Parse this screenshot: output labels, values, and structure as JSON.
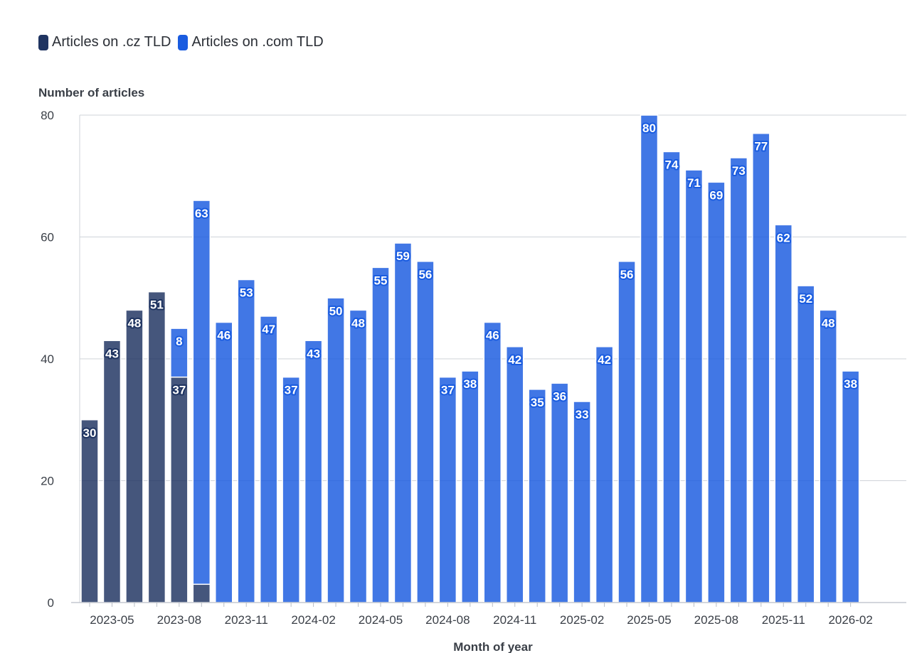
{
  "chart_data": {
    "type": "bar",
    "stacked": true,
    "ylabel": "Number of articles",
    "xlabel": "Month of year",
    "ylim": [
      0,
      80
    ],
    "yticks": [
      0,
      20,
      40,
      60,
      80
    ],
    "grid": true,
    "legend_position": "top-left",
    "categories": [
      "2023-04",
      "2023-05",
      "2023-06",
      "2023-07",
      "2023-08",
      "2023-09",
      "2023-10",
      "2023-11",
      "2023-12",
      "2024-01",
      "2024-02",
      "2024-03",
      "2024-04",
      "2024-05",
      "2024-06",
      "2024-07",
      "2024-08",
      "2024-09",
      "2024-10",
      "2024-11",
      "2024-12",
      "2025-01",
      "2025-02",
      "2025-03",
      "2025-04",
      "2025-05",
      "2025-06",
      "2025-07",
      "2025-08",
      "2025-09",
      "2025-10",
      "2025-11",
      "2025-12",
      "2026-01",
      "2026-02"
    ],
    "xtick_labels": [
      "2023-05",
      "2023-08",
      "2023-11",
      "2024-02",
      "2024-05",
      "2024-08",
      "2024-11",
      "2025-02",
      "2025-05",
      "2025-08",
      "2025-11",
      "2026-02"
    ],
    "series": [
      {
        "name": "Articles on .cz TLD",
        "color": "#1f3461",
        "values": [
          30,
          43,
          48,
          51,
          37,
          3,
          0,
          0,
          0,
          0,
          0,
          0,
          0,
          0,
          0,
          0,
          0,
          0,
          0,
          0,
          0,
          0,
          0,
          0,
          0,
          0,
          0,
          0,
          0,
          0,
          0,
          0,
          0,
          0,
          0
        ],
        "labels": [
          30,
          43,
          48,
          51,
          37,
          null,
          null,
          null,
          null,
          null,
          null,
          null,
          null,
          null,
          null,
          null,
          null,
          null,
          null,
          null,
          null,
          null,
          null,
          null,
          null,
          null,
          null,
          null,
          null,
          null,
          null,
          null,
          null,
          null,
          null
        ]
      },
      {
        "name": "Articles on .com TLD",
        "color": "#1a5ce0",
        "values": [
          0,
          0,
          0,
          0,
          8,
          63,
          46,
          53,
          47,
          37,
          43,
          50,
          48,
          55,
          59,
          56,
          37,
          38,
          46,
          42,
          35,
          36,
          33,
          42,
          56,
          80,
          74,
          71,
          69,
          73,
          77,
          62,
          52,
          48,
          38
        ],
        "labels": [
          null,
          null,
          null,
          null,
          8,
          63,
          46,
          53,
          47,
          37,
          43,
          50,
          48,
          55,
          59,
          56,
          37,
          38,
          46,
          42,
          35,
          36,
          33,
          42,
          56,
          80,
          74,
          71,
          69,
          73,
          77,
          62,
          52,
          48,
          38
        ]
      }
    ]
  }
}
